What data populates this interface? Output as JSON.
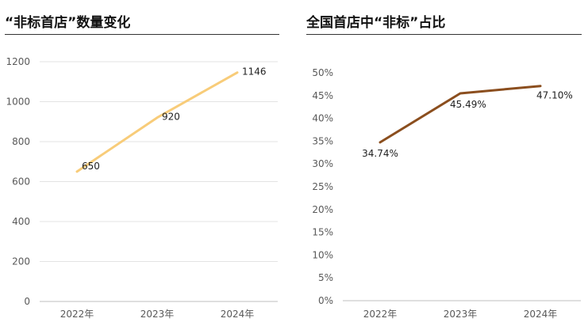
{
  "chart_data": [
    {
      "type": "line",
      "title": "“非标首店”数量变化",
      "categories": [
        "2022年",
        "2023年",
        "2024年"
      ],
      "series": [
        {
          "values": [
            650,
            920,
            1146
          ]
        }
      ],
      "data_labels": [
        "650",
        "920",
        "1146"
      ],
      "ylim": [
        0,
        1200
      ],
      "yticks": [
        "0",
        "200",
        "400",
        "600",
        "800",
        "1000",
        "1200"
      ],
      "grid": true,
      "color": "#F8CC79"
    },
    {
      "type": "line",
      "title": "全国首店中“非标”占比",
      "categories": [
        "2022年",
        "2023年",
        "2024年"
      ],
      "series": [
        {
          "values": [
            34.74,
            45.49,
            47.1
          ]
        }
      ],
      "data_labels": [
        "34.74%",
        "45.49%",
        "47.10%"
      ],
      "ylim": [
        0,
        50
      ],
      "yticks": [
        "0%",
        "5%",
        "10%",
        "15%",
        "20%",
        "25%",
        "30%",
        "35%",
        "40%",
        "45%",
        "50%"
      ],
      "grid": false,
      "color": "#8B4E1E"
    }
  ]
}
